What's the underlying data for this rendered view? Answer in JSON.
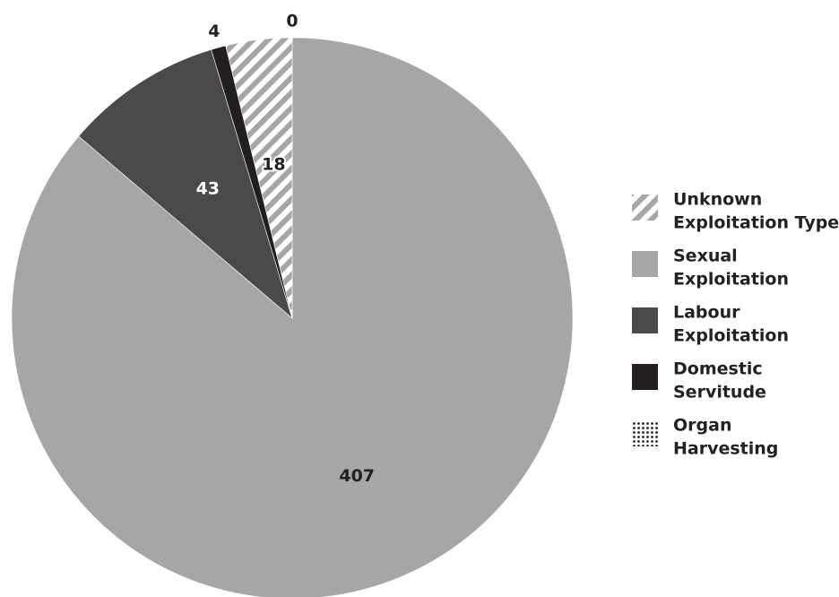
{
  "chart_data": {
    "type": "pie",
    "slices": [
      {
        "label": "Unknown Exploitation Type",
        "legend_lines": [
          "Unknown",
          "Exploitation Type"
        ],
        "value": 18,
        "display": "18",
        "fill": "stripes",
        "color": "#a6a6a8",
        "label_color": "#222222"
      },
      {
        "label": "Sexual Exploitation",
        "legend_lines": [
          "Sexual",
          "Exploitation"
        ],
        "value": 407,
        "display": "407",
        "fill": "solid",
        "color": "#a6a6a8",
        "label_color": "#222222"
      },
      {
        "label": "Labour Exploitation",
        "legend_lines": [
          "Labour",
          "Exploitation"
        ],
        "value": 43,
        "display": "43",
        "fill": "solid",
        "color": "#4a4a4c",
        "label_color": "#ffffff"
      },
      {
        "label": "Domestic Servitude",
        "legend_lines": [
          "Domestic",
          "Servitude"
        ],
        "value": 4,
        "display": "4",
        "fill": "solid",
        "color": "#231f20",
        "label_color": "#222222"
      },
      {
        "label": "Organ Harvesting",
        "legend_lines": [
          "Organ",
          "Harvesting"
        ],
        "value": 0,
        "display": "0",
        "fill": "dots",
        "color": "#231f20",
        "label_color": "#222222"
      }
    ],
    "start": "12 o'clock",
    "direction": "clockwise",
    "legend_position": "right"
  }
}
